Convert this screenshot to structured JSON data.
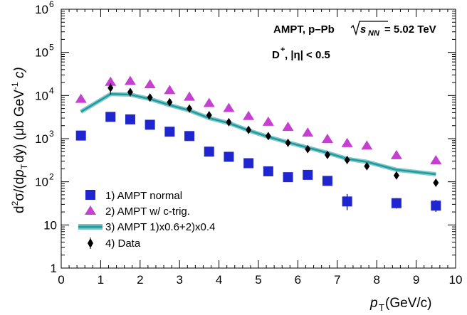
{
  "chart_data": {
    "type": "scatter",
    "x_scale": "linear",
    "y_scale": "log",
    "xlim": [
      0,
      10
    ],
    "ylim": [
      1,
      1000000
    ],
    "x_ticks": [
      "0",
      "1",
      "2",
      "3",
      "4",
      "5",
      "6",
      "7",
      "8",
      "9",
      "10"
    ],
    "y_ticks": [
      "1",
      "10",
      "10",
      "10",
      "10",
      "10",
      "10"
    ],
    "y_tick_exponents": [
      "",
      "",
      "2",
      "3",
      "4",
      "5",
      "6"
    ],
    "xlabel": {
      "main": "p",
      "sub": "T",
      "rest": " (GeV/c)"
    },
    "ylabel": "d²σ/(dp_T dy) (μb GeV⁻¹ c)",
    "ylabel_parts": {
      "d": "d",
      "sup2": "2",
      "sigma": "σ/(d",
      "p": "p",
      "sub": "T",
      "rest": "dy) (μb GeV",
      "sup": "-1",
      "end": " c)"
    },
    "annotation_lines": {
      "line1_prefix": "AMPT, p–Pb",
      "line1_sqrt_s": "s",
      "line1_sqrt_sub": "NN",
      "line1_suffix": " = 5.02 TeV",
      "line2_particle": "D",
      "line2_charge": "+",
      "line2_rest": " , |η| < 0.5"
    },
    "legend_placement": "bottom-left",
    "series": [
      {
        "name": "1) AMPT normal",
        "marker": "square",
        "color": "#1f26d0",
        "x": [
          0.5,
          1.25,
          1.75,
          2.25,
          2.75,
          3.25,
          3.75,
          4.25,
          4.75,
          5.25,
          5.75,
          6.25,
          6.75,
          7.25,
          8.5,
          9.5
        ],
        "y": [
          1180,
          3200,
          2800,
          2100,
          1450,
          1150,
          500,
          380,
          270,
          175,
          128,
          145,
          105,
          35,
          32,
          28
        ],
        "err_low": [
          null,
          null,
          null,
          null,
          null,
          null,
          null,
          null,
          null,
          null,
          null,
          null,
          null,
          22,
          24,
          20
        ],
        "err_high": [
          null,
          null,
          null,
          null,
          null,
          null,
          null,
          null,
          null,
          null,
          null,
          null,
          null,
          52,
          42,
          38
        ]
      },
      {
        "name": "2) AMPT w/ c-trig.",
        "marker": "triangle",
        "color": "#c53fd1",
        "x": [
          0.5,
          1.25,
          1.75,
          2.25,
          2.75,
          3.25,
          3.75,
          4.25,
          4.75,
          5.25,
          5.75,
          6.25,
          6.75,
          7.25,
          7.75,
          8.5,
          9.5
        ],
        "y": [
          8500,
          21000,
          22000,
          18500,
          13500,
          9500,
          6800,
          5200,
          3400,
          2500,
          1900,
          1400,
          1000,
          800,
          700,
          420,
          320
        ]
      },
      {
        "name": "3) AMPT 1)x0.6+2)x0.4",
        "marker": "band",
        "color": "#1f9b9f",
        "x": [
          0.5,
          1.25,
          1.75,
          2.25,
          2.75,
          3.25,
          3.75,
          4.25,
          4.75,
          5.25,
          5.75,
          6.25,
          6.75,
          7.25,
          7.75,
          8.5,
          9.5
        ],
        "y": [
          4200,
          10800,
          10500,
          8300,
          6000,
          4500,
          3000,
          2300,
          1550,
          1100,
          820,
          620,
          470,
          340,
          290,
          190,
          150
        ]
      },
      {
        "name": "4) Data",
        "marker": "diamond",
        "color": "#000000",
        "x": [
          1.25,
          1.75,
          2.25,
          2.75,
          3.25,
          3.75,
          4.25,
          4.75,
          5.25,
          5.75,
          6.25,
          6.75,
          7.25,
          7.75,
          8.5,
          9.5
        ],
        "y": [
          15000,
          12000,
          9000,
          7000,
          5000,
          3500,
          2400,
          1600,
          1150,
          800,
          570,
          420,
          320,
          230,
          140,
          95
        ],
        "err_low": [
          10500,
          9500,
          7300,
          5800,
          4200,
          3000,
          2050,
          1380,
          980,
          690,
          480,
          355,
          270,
          190,
          115,
          78
        ],
        "err_high": [
          19500,
          14800,
          11000,
          8400,
          6000,
          4100,
          2800,
          1850,
          1330,
          920,
          660,
          490,
          370,
          270,
          168,
          112
        ]
      }
    ]
  }
}
